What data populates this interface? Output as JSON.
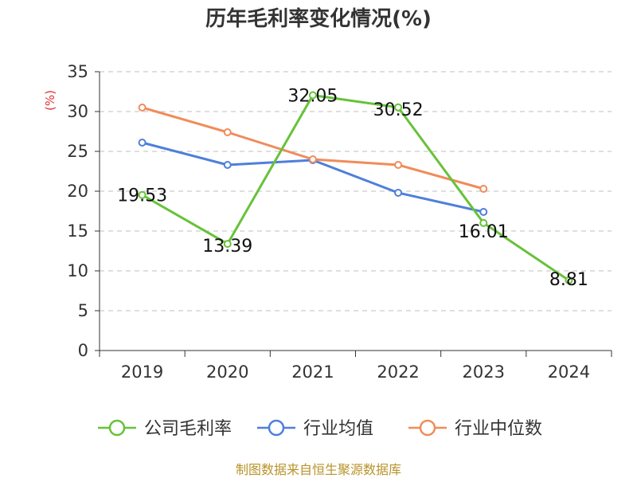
{
  "chart_data": {
    "type": "line",
    "title": "历年毛利率变化情况(%)",
    "ylabel": "(%)",
    "xlabel": "",
    "categories": [
      "2019",
      "2020",
      "2021",
      "2022",
      "2023",
      "2024"
    ],
    "ylim": [
      0,
      35
    ],
    "yticks": [
      0,
      5,
      10,
      15,
      20,
      25,
      30,
      35
    ],
    "grid": true,
    "legend_position": "bottom",
    "series": [
      {
        "name": "公司毛利率",
        "color": "#67c23a",
        "values": [
          19.53,
          13.39,
          32.05,
          30.52,
          16.01,
          8.81
        ],
        "labels": [
          "19.53",
          "13.39",
          "32.05",
          "30.52",
          "16.01",
          "8.81"
        ]
      },
      {
        "name": "行业均值",
        "color": "#4e7fdb",
        "values": [
          26.1,
          23.3,
          23.9,
          19.8,
          17.4,
          null
        ]
      },
      {
        "name": "行业中位数",
        "color": "#f08c5a",
        "values": [
          30.5,
          27.4,
          24.0,
          23.3,
          20.3,
          null
        ]
      }
    ]
  },
  "footer": {
    "source": "制图数据来自恒生聚源数据库"
  }
}
